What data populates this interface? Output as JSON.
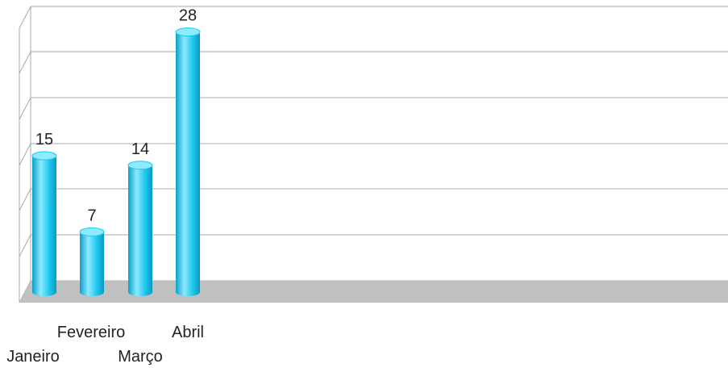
{
  "chart_data": {
    "type": "bar",
    "categories": [
      "Janeiro",
      "Fevereiro",
      "Março",
      "Abril"
    ],
    "values": [
      15,
      7,
      14,
      28
    ],
    "title": "",
    "xlabel": "",
    "ylabel": "",
    "ylim": [
      0,
      30
    ],
    "grid": true,
    "legend": "none",
    "colors": {
      "bar": "#1ec8ee",
      "bar_light": "#8eeaff",
      "bar_dark": "#0aa0c8",
      "floor": "#c0c0c0",
      "grid": "#a8a8a8"
    }
  }
}
